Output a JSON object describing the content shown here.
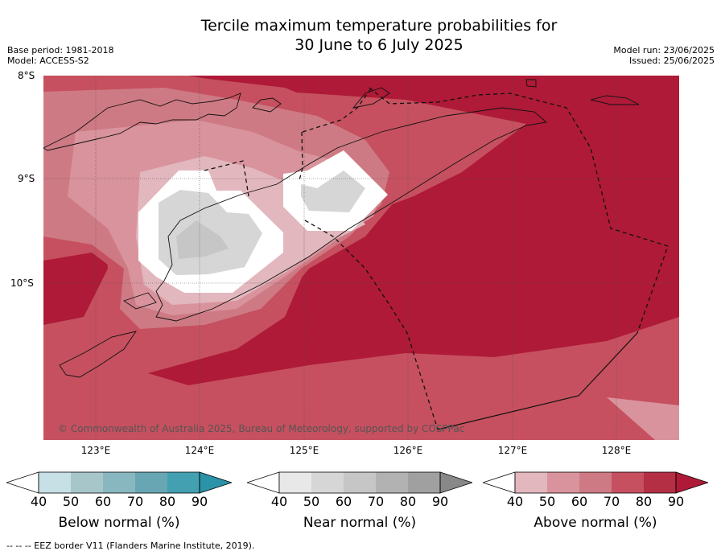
{
  "title": {
    "line1": "Tercile maximum temperature probabilities for",
    "line2": "30 June to 6 July 2025"
  },
  "meta_left": {
    "base_period": "Base period: 1981-2018",
    "model": "Model: ACCESS-S2"
  },
  "meta_right": {
    "model_run": "Model run: 23/06/2025",
    "issued": "Issued: 25/06/2025"
  },
  "map": {
    "lat_labels": [
      "8°S",
      "9°S",
      "10°S"
    ],
    "lon_labels": [
      "123°E",
      "124°E",
      "125°E",
      "126°E",
      "127°E",
      "128°E"
    ],
    "copyright": "© Commonwealth of Australia 2025, Bureau of Meteorology, supported by COSPPac"
  },
  "legends": [
    {
      "label": "Below normal (%)",
      "ticks": [
        "40",
        "50",
        "60",
        "70",
        "80",
        "90"
      ],
      "colors": [
        "#ffffff",
        "#c6e0e6",
        "#a6c6ca",
        "#88b7c0",
        "#68a6b4",
        "#43a0b0",
        "#2a93a8"
      ]
    },
    {
      "label": "Near normal (%)",
      "ticks": [
        "40",
        "50",
        "60",
        "70",
        "80",
        "90"
      ],
      "colors": [
        "#ffffff",
        "#e8e8e8",
        "#d6d6d6",
        "#c6c6c6",
        "#b2b2b2",
        "#a0a0a0",
        "#888888"
      ]
    },
    {
      "label": "Above normal (%)",
      "ticks": [
        "40",
        "50",
        "60",
        "70",
        "80",
        "90"
      ],
      "colors": [
        "#ffffff",
        "#e2b7be",
        "#d9939c",
        "#ce7a84",
        "#c6505f",
        "#b42f44",
        "#ae1a37"
      ]
    }
  ],
  "footer": "--  --  -- EEZ border V11 (Flanders Marine Institute, 2019)."
}
